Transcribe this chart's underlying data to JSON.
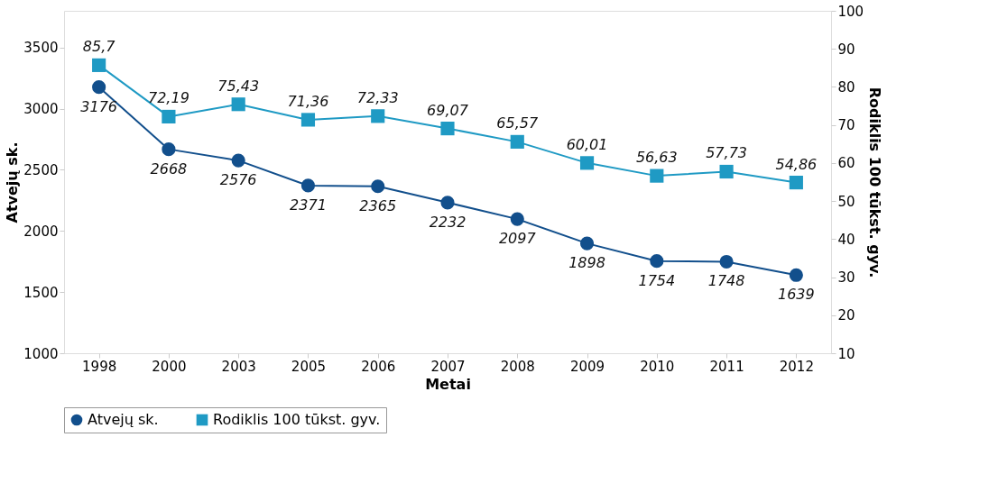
{
  "chart_data": {
    "type": "line",
    "xlabel": "Metai",
    "ylabel": "Atvejų sk.",
    "y2label": "Rodiklis 100 tūkst. gyv.",
    "categories": [
      "1998",
      "2000",
      "2003",
      "2005",
      "2006",
      "2007",
      "2008",
      "2009",
      "2010",
      "2011",
      "2012"
    ],
    "series": [
      {
        "name": "Atvejų sk.",
        "color": "#124f8c",
        "marker": "circle",
        "axis": "y",
        "values": [
          3176,
          2668,
          2576,
          2371,
          2365,
          2232,
          2097,
          1898,
          1754,
          1748,
          1639
        ],
        "value_labels": [
          "3176",
          "2668",
          "2576",
          "2371",
          "2365",
          "2232",
          "2097",
          "1898",
          "1754",
          "1748",
          "1639"
        ]
      },
      {
        "name": "Rodiklis 100 tūkst. gyv.",
        "color": "#1f9ac4",
        "marker": "square",
        "axis": "y2",
        "values": [
          85.7,
          72.19,
          75.43,
          71.36,
          72.33,
          69.07,
          65.57,
          60.01,
          56.63,
          57.73,
          54.86
        ],
        "value_labels": [
          "85,7",
          "72,19",
          "75,43",
          "71,36",
          "72,33",
          "69,07",
          "65,57",
          "60,01",
          "56,63",
          "57,73",
          "54,86"
        ]
      }
    ],
    "ylim": [
      1000,
      3800
    ],
    "yticks": [
      1000,
      1500,
      2000,
      2500,
      3000,
      3500
    ],
    "y2lim": [
      10,
      100
    ],
    "y2ticks": [
      10,
      20,
      30,
      40,
      50,
      60,
      70,
      80,
      90,
      100
    ],
    "legend": "bottom",
    "grid": false,
    "line_style": "solid"
  }
}
